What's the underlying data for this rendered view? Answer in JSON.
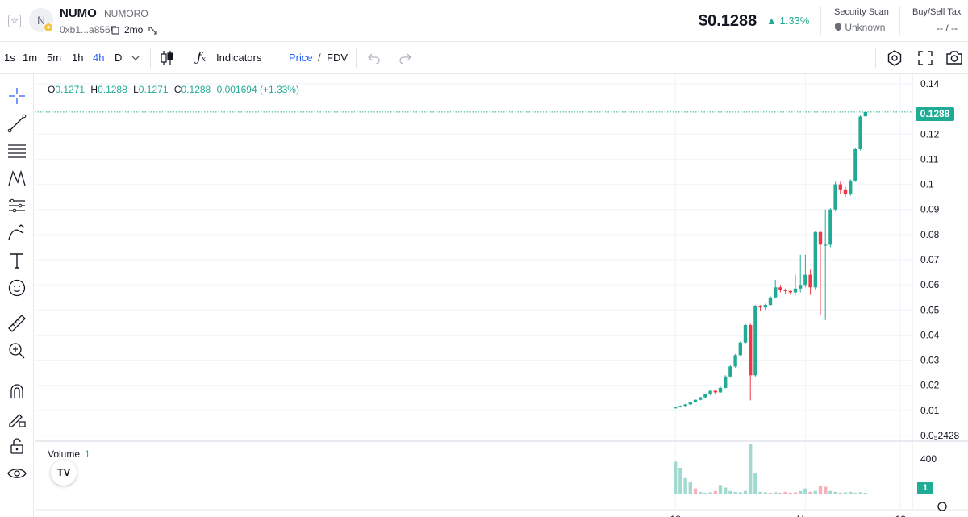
{
  "header": {
    "avatar_letter": "N",
    "symbol": "NUMO",
    "name": "NUMORO",
    "address": "0xb1...a856",
    "age": "2mo",
    "price": "$0.1288",
    "change": "▲ 1.33%",
    "security_scan_label": "Security Scan",
    "security_scan_value": "Unknown",
    "buy_sell_tax_label": "Buy/Sell Tax",
    "buy_sell_tax_value": "-- / --"
  },
  "toolbar": {
    "timeframes": [
      "1s",
      "1m",
      "5m",
      "1h",
      "4h",
      "D"
    ],
    "active_timeframe": "4h",
    "indicators_label": "Indicators",
    "price_label": "Price",
    "slash": "/",
    "fdv_label": "FDV"
  },
  "ohlc": {
    "o_label": "O",
    "o": "0.1271",
    "h_label": "H",
    "h": "0.1288",
    "l_label": "L",
    "l": "0.1271",
    "c_label": "C",
    "c": "0.1288",
    "change": "0.001694 (+1.33%)"
  },
  "volume": {
    "label": "Volume",
    "value": "1",
    "last": "1"
  },
  "colors": {
    "up": "#22ab94",
    "down": "#f23645",
    "accent": "#2962ff"
  },
  "chart_data": {
    "type": "candlestick",
    "y_ticks": [
      "0.14",
      "0.12",
      "0.11",
      "0.1",
      "0.09",
      "0.08",
      "0.07",
      "0.06",
      "0.05",
      "0.04",
      "0.03",
      "0.02",
      "0.01",
      "0.0₅2428"
    ],
    "y_tick_values": [
      0.14,
      0.12,
      0.11,
      0.1,
      0.09,
      0.08,
      0.07,
      0.06,
      0.05,
      0.04,
      0.03,
      0.02,
      0.01,
      0.0
    ],
    "ylim": [
      0.0,
      0.14
    ],
    "last_price": "0.1288",
    "last_price_value": 0.1288,
    "x_ticks": [
      "18",
      "Nov",
      "12"
    ],
    "x_tick_index": [
      0,
      26,
      45
    ],
    "volume_axis_tick": "400",
    "volume_max": 580,
    "candles": [
      [
        0.011,
        0.0112,
        0.0108,
        0.0114
      ],
      [
        0.0114,
        0.0118,
        0.0112,
        0.012
      ],
      [
        0.0118,
        0.0124,
        0.0116,
        0.0126
      ],
      [
        0.0124,
        0.0132,
        0.0122,
        0.0134
      ],
      [
        0.0132,
        0.0142,
        0.013,
        0.0144
      ],
      [
        0.0142,
        0.0152,
        0.014,
        0.0155
      ],
      [
        0.0152,
        0.0165,
        0.015,
        0.0168
      ],
      [
        0.0165,
        0.0178,
        0.016,
        0.018
      ],
      [
        0.0178,
        0.0172,
        0.0165,
        0.018
      ],
      [
        0.0172,
        0.019,
        0.017,
        0.0195
      ],
      [
        0.019,
        0.0235,
        0.0188,
        0.024
      ],
      [
        0.0235,
        0.0275,
        0.023,
        0.028
      ],
      [
        0.0275,
        0.032,
        0.027,
        0.0325
      ],
      [
        0.032,
        0.037,
        0.0315,
        0.0375
      ],
      [
        0.037,
        0.044,
        0.0365,
        0.0445
      ],
      [
        0.044,
        0.024,
        0.014,
        0.0445
      ],
      [
        0.024,
        0.0515,
        0.0235,
        0.052
      ],
      [
        0.0515,
        0.051,
        0.0495,
        0.052
      ],
      [
        0.051,
        0.052,
        0.05,
        0.0525
      ],
      [
        0.052,
        0.055,
        0.0515,
        0.0555
      ],
      [
        0.055,
        0.059,
        0.0545,
        0.062
      ],
      [
        0.059,
        0.058,
        0.057,
        0.06
      ],
      [
        0.058,
        0.0575,
        0.0565,
        0.0585
      ],
      [
        0.0575,
        0.057,
        0.056,
        0.058
      ],
      [
        0.057,
        0.0585,
        0.056,
        0.064
      ],
      [
        0.0585,
        0.06,
        0.057,
        0.072
      ],
      [
        0.06,
        0.064,
        0.059,
        0.072
      ],
      [
        0.064,
        0.059,
        0.056,
        0.066
      ],
      [
        0.059,
        0.081,
        0.058,
        0.0815
      ],
      [
        0.081,
        0.076,
        0.048,
        0.0815
      ],
      [
        0.076,
        0.076,
        0.046,
        0.09
      ],
      [
        0.076,
        0.09,
        0.075,
        0.0905
      ],
      [
        0.09,
        0.1,
        0.0895,
        0.101
      ],
      [
        0.1,
        0.098,
        0.096,
        0.101
      ],
      [
        0.098,
        0.096,
        0.095,
        0.099
      ],
      [
        0.096,
        0.1015,
        0.0955,
        0.102
      ],
      [
        0.1015,
        0.114,
        0.101,
        0.1145
      ],
      [
        0.114,
        0.127,
        0.1135,
        0.1275
      ],
      [
        0.1271,
        0.1288,
        0.1271,
        0.1288
      ]
    ],
    "volumes": [
      [
        370,
        1
      ],
      [
        300,
        1
      ],
      [
        180,
        1
      ],
      [
        130,
        1
      ],
      [
        60,
        0
      ],
      [
        20,
        1
      ],
      [
        10,
        1
      ],
      [
        15,
        1
      ],
      [
        30,
        0
      ],
      [
        100,
        1
      ],
      [
        70,
        1
      ],
      [
        30,
        1
      ],
      [
        20,
        1
      ],
      [
        15,
        1
      ],
      [
        30,
        1
      ],
      [
        580,
        1
      ],
      [
        240,
        1
      ],
      [
        20,
        1
      ],
      [
        15,
        1
      ],
      [
        10,
        0
      ],
      [
        15,
        1
      ],
      [
        10,
        0
      ],
      [
        20,
        0
      ],
      [
        10,
        0
      ],
      [
        15,
        0
      ],
      [
        30,
        1
      ],
      [
        60,
        1
      ],
      [
        20,
        0
      ],
      [
        30,
        1
      ],
      [
        90,
        0
      ],
      [
        80,
        0
      ],
      [
        30,
        1
      ],
      [
        20,
        1
      ],
      [
        10,
        0
      ],
      [
        15,
        1
      ],
      [
        20,
        1
      ],
      [
        10,
        1
      ],
      [
        15,
        1
      ],
      [
        5,
        1
      ]
    ]
  }
}
